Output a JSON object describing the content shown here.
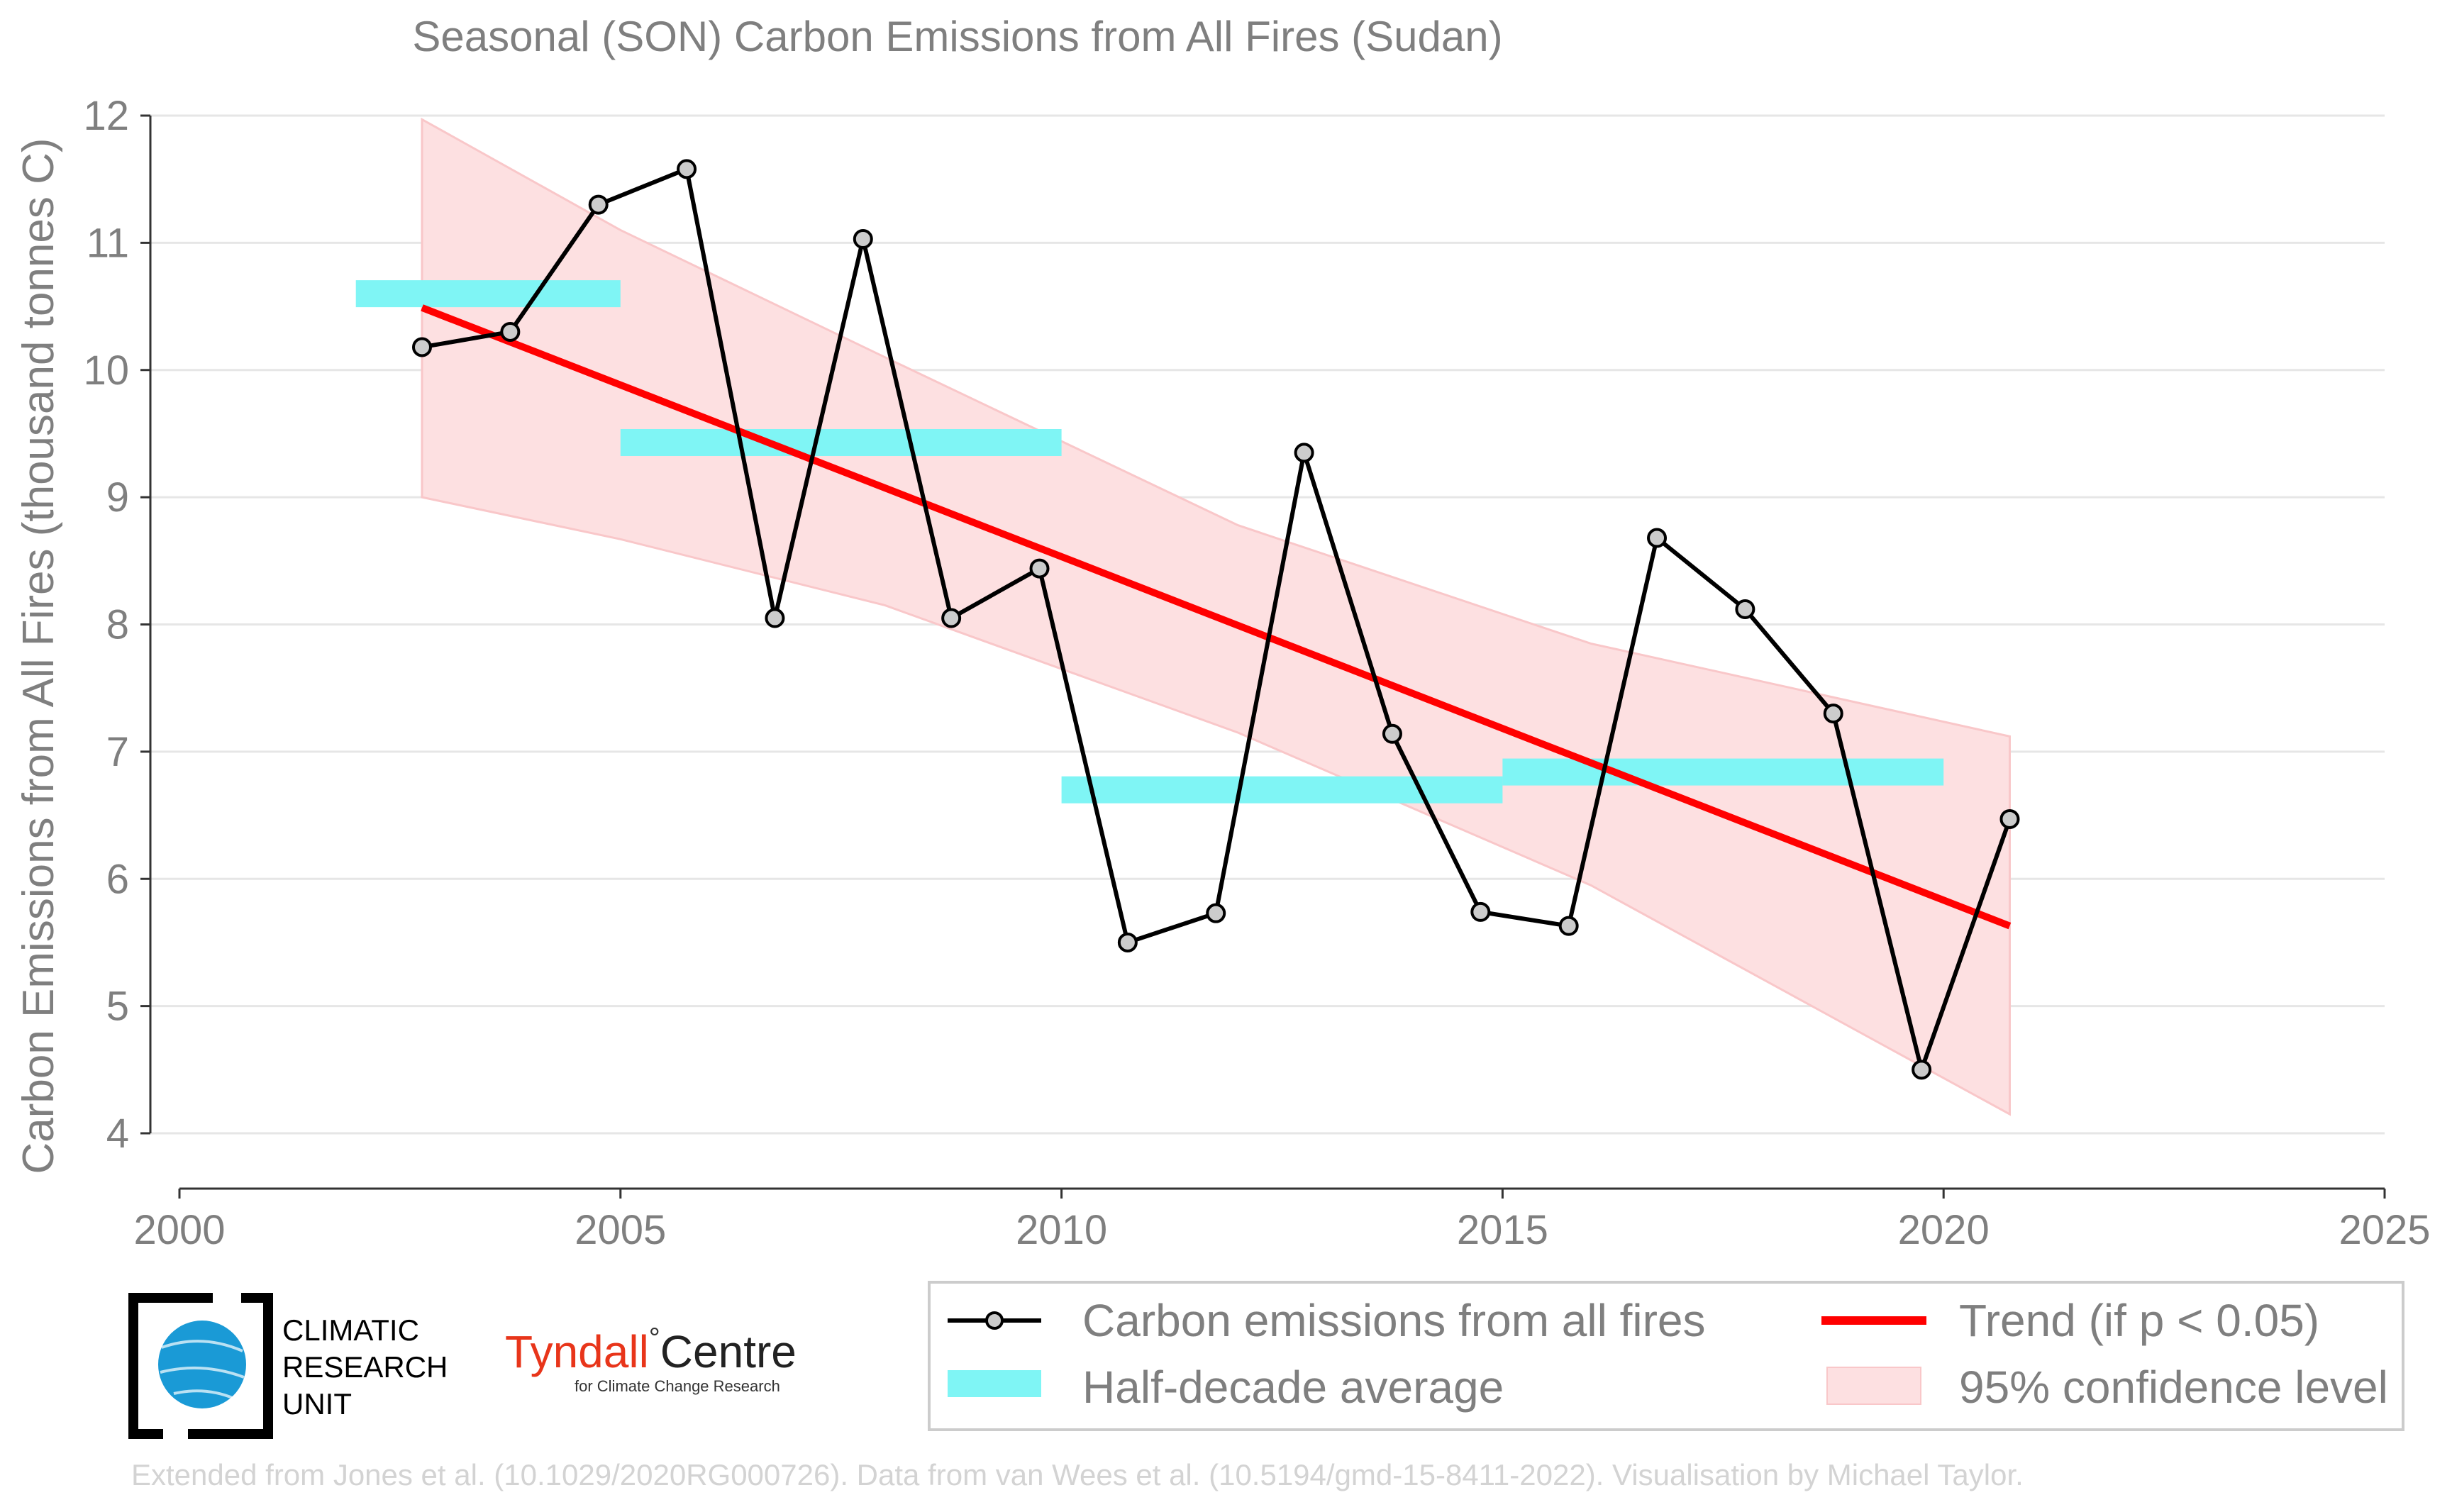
{
  "chart_data": {
    "type": "line",
    "title": "Seasonal (SON) Carbon Emissions from All Fires (Sudan)",
    "ylabel": "Carbon Emissions from All Fires (thousand tonnes C)",
    "xlabel": "",
    "xlim": [
      2000,
      2025
    ],
    "ylim": [
      4,
      12
    ],
    "x_ticks": [
      2000,
      2005,
      2010,
      2015,
      2020,
      2025
    ],
    "y_ticks": [
      4,
      5,
      6,
      7,
      8,
      9,
      10,
      11,
      12
    ],
    "grid": "horizontal",
    "legend_position": "bottom-right",
    "series": [
      {
        "name": "Carbon emissions from all fires",
        "color": "#000000",
        "marker_fill": "#cccccc",
        "x": [
          2002.75,
          2003.75,
          2004.75,
          2005.75,
          2006.75,
          2007.75,
          2008.75,
          2009.75,
          2010.75,
          2011.75,
          2012.75,
          2013.75,
          2014.75,
          2015.75,
          2016.75,
          2017.75,
          2018.75,
          2019.75,
          2020.75
        ],
        "values": [
          10.18,
          10.3,
          11.3,
          11.58,
          8.05,
          11.03,
          8.05,
          8.44,
          5.5,
          5.73,
          9.35,
          7.14,
          5.74,
          5.63,
          8.68,
          8.12,
          7.3,
          4.5,
          6.47
        ]
      },
      {
        "name": "Half-decade average",
        "color": "#7ff5f5",
        "segments": [
          {
            "x_start": 2002,
            "x_end": 2005,
            "value": 10.6
          },
          {
            "x_start": 2005,
            "x_end": 2010,
            "value": 9.43
          },
          {
            "x_start": 2010,
            "x_end": 2015,
            "value": 6.7
          },
          {
            "x_start": 2015,
            "x_end": 2020,
            "value": 6.84
          }
        ]
      },
      {
        "name": "Trend (if p < 0.05)",
        "color": "#ff0000",
        "x": [
          2002.75,
          2020.75
        ],
        "values": [
          10.49,
          5.63
        ]
      },
      {
        "name": "95% confidence level",
        "color": "#fde0e1",
        "x": [
          2002.75,
          2005,
          2008,
          2012,
          2016,
          2020.75
        ],
        "upper": [
          11.97,
          11.1,
          10.1,
          8.78,
          7.85,
          7.12
        ],
        "lower": [
          9.0,
          8.67,
          8.15,
          7.15,
          5.95,
          4.15
        ]
      }
    ]
  },
  "legend": {
    "items": [
      {
        "label": "Carbon emissions from all fires"
      },
      {
        "label": "Trend (if p < 0.05)"
      },
      {
        "label": "Half-decade average"
      },
      {
        "label": "95% confidence level"
      }
    ]
  },
  "logos": {
    "cru_line1": "CLIMATIC",
    "cru_line2": "RESEARCH",
    "cru_line3": "UNIT",
    "tyndall_name": "Tyndall",
    "tyndall_degree": "°",
    "tyndall_centre": "Centre",
    "tyndall_sub": "for Climate Change Research"
  },
  "credit": "Extended from Jones et al. (10.1029/2020RG000726). Data from van Wees et al. (10.5194/gmd-15-8411-2022). Visualisation by Michael Taylor."
}
